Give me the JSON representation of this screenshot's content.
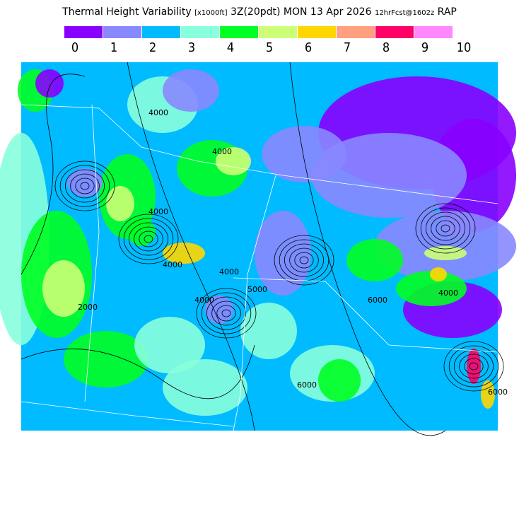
{
  "title": {
    "main": "Thermal Height Variability",
    "units": "[x1000ft]",
    "time": "3Z(20pdt) MON 13 Apr 2026",
    "forecast": "12hrFcst@1602z",
    "model": "RAP"
  },
  "legend": {
    "colors": [
      "#8800ff",
      "#8888ff",
      "#00bbff",
      "#88ffdd",
      "#00ff22",
      "#ccff77",
      "#ffd700",
      "#ffa080",
      "#ff0066",
      "#ff88ff"
    ],
    "labels": [
      "0",
      "1",
      "2",
      "3",
      "4",
      "5",
      "6",
      "7",
      "8",
      "9",
      "10"
    ]
  },
  "contour_labels": [
    "4000",
    "4000",
    "4000",
    "2000",
    "4000",
    "4000",
    "4000",
    "6000",
    "5000",
    "6000",
    "4000",
    "6000"
  ]
}
